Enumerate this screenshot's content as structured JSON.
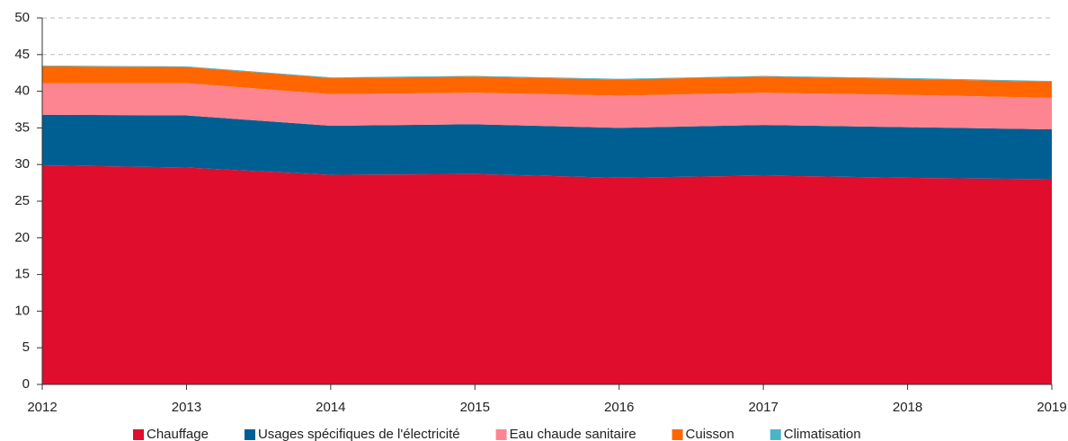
{
  "chart_data": {
    "type": "stacked_area",
    "x": [
      2012,
      2013,
      2014,
      2015,
      2016,
      2017,
      2018,
      2019
    ],
    "xlim": [
      2012,
      2019
    ],
    "xticks": [
      2012,
      2013,
      2014,
      2015,
      2016,
      2017,
      2018,
      2019
    ],
    "ylim": [
      0,
      50
    ],
    "yticks": [
      0,
      5,
      10,
      15,
      20,
      25,
      30,
      35,
      40,
      45,
      50
    ],
    "grid": true,
    "legend": "bottom",
    "series": [
      {
        "name": "Chauffage",
        "color": "#e00d2c",
        "values": [
          29.9,
          29.6,
          28.6,
          28.7,
          28.2,
          28.5,
          28.2,
          28.0
        ]
      },
      {
        "name": "Usages spécifiques de l'électricité",
        "color": "#005f92",
        "values": [
          6.9,
          7.1,
          6.7,
          6.8,
          6.8,
          6.9,
          6.9,
          6.8
        ]
      },
      {
        "name": "Eau chaude sanitaire",
        "color": "#fc8591",
        "values": [
          4.3,
          4.4,
          4.3,
          4.3,
          4.4,
          4.4,
          4.4,
          4.3
        ]
      },
      {
        "name": "Cuisson",
        "color": "#ff6600",
        "values": [
          2.3,
          2.2,
          2.2,
          2.2,
          2.2,
          2.2,
          2.2,
          2.2
        ]
      },
      {
        "name": "Climatisation",
        "color": "#4db3c9",
        "values": [
          0.1,
          0.1,
          0.1,
          0.1,
          0.1,
          0.1,
          0.1,
          0.1
        ]
      }
    ]
  }
}
